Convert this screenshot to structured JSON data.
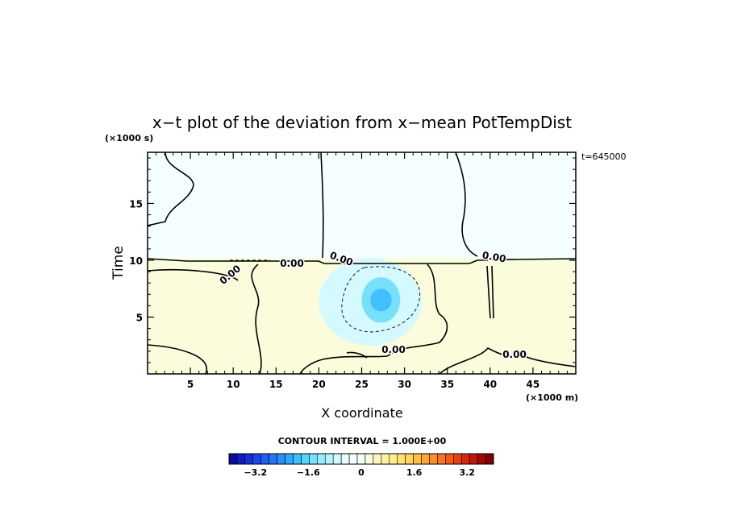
{
  "chart_data": {
    "type": "heatmap",
    "title": "x−t plot of the deviation from x−mean PotTempDist",
    "xlabel": "X coordinate",
    "ylabel": "Time",
    "x_unit": "(×1000 m)",
    "y_unit": "(×1000 s)",
    "time_stamp": "t=645000",
    "xlim": [
      0,
      50
    ],
    "ylim": [
      0,
      19.5
    ],
    "x_ticks": [
      5,
      10,
      15,
      20,
      25,
      30,
      35,
      40,
      45
    ],
    "y_ticks": [
      5,
      10,
      15
    ],
    "contour_label": "0.00",
    "contour_interval_text": "CONTOUR INTERVAL = 1.000E+00",
    "colorbar": {
      "min": -4.0,
      "max": 4.0,
      "step": 0.2,
      "tick_values": [
        -3.2,
        -1.6,
        0,
        1.6,
        3.2
      ],
      "tick_labels": [
        "−3.2",
        "−1.6",
        "0",
        "1.6",
        "3.2"
      ],
      "colors": [
        "#0a0aa0",
        "#0f1cc0",
        "#1530d8",
        "#1a48e8",
        "#1e60f2",
        "#2478f8",
        "#2a90fc",
        "#30a8fe",
        "#40c0ff",
        "#5ad2ff",
        "#78e0ff",
        "#98ecff",
        "#b8f4ff",
        "#d4faff",
        "#ecfdff",
        "#f6ffff",
        "#f2fff6",
        "#fafcdc",
        "#fdf8c2",
        "#fff2a8",
        "#fff08e",
        "#fee474",
        "#fed45a",
        "#fec040",
        "#fea830",
        "#fc8e24",
        "#f8761c",
        "#f05c14",
        "#e4420e",
        "#d42a0a",
        "#c01806",
        "#a00a02",
        "#800000"
      ]
    },
    "field": [
      {
        "x0": 0,
        "x1": 50,
        "y0": 10.2,
        "y1": 19.5,
        "value": -0.2
      },
      {
        "x0": 0,
        "x1": 50,
        "y0": 0,
        "y1": 10.2,
        "value": 0.3
      },
      {
        "x0": 20,
        "x1": 32,
        "y0": 2.5,
        "y1": 10.2,
        "value": -0.8
      },
      {
        "x0": 25,
        "x1": 29.5,
        "y0": 4.5,
        "y1": 8.5,
        "value": -1.4
      },
      {
        "x0": 26,
        "x1": 28.5,
        "y0": 5.5,
        "y1": 7.5,
        "value": -1.9
      }
    ]
  }
}
